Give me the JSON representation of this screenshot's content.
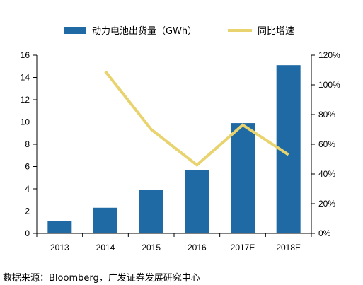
{
  "chart_data": {
    "type": "bar+line",
    "categories": [
      "2013",
      "2014",
      "2015",
      "2016",
      "2017E",
      "2018E"
    ],
    "series": [
      {
        "name": "动力电池出货量（GWh）",
        "kind": "bar",
        "axis": "left",
        "color": "#1f6aa5",
        "values": [
          1.1,
          2.3,
          3.9,
          5.7,
          9.9,
          15.1
        ]
      },
      {
        "name": "同比增速",
        "kind": "line",
        "axis": "right",
        "color": "#e8d36e",
        "values": [
          null,
          1.09,
          0.7,
          0.46,
          0.73,
          0.53
        ]
      }
    ],
    "y_left": {
      "min": 0,
      "max": 16,
      "ticks": [
        "0",
        "2",
        "4",
        "6",
        "8",
        "10",
        "12",
        "14",
        "16"
      ]
    },
    "y_right": {
      "min": 0,
      "max": 1.2,
      "ticks": [
        "0%",
        "20%",
        "40%",
        "60%",
        "80%",
        "100%",
        "120%"
      ]
    },
    "grid": false,
    "legend_position": "top"
  },
  "source": "数据来源：Bloomberg，广发证券发展研究中心"
}
